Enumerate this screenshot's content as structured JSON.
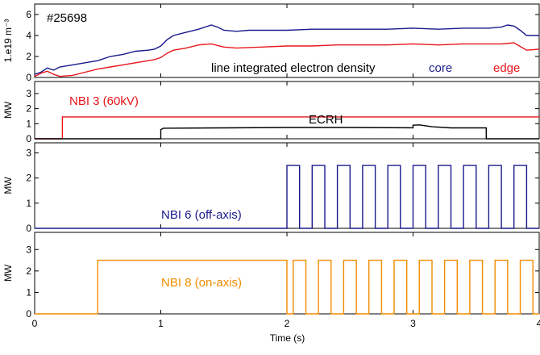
{
  "colors": {
    "core": "#1a1a8c",
    "edge": "#e8161b",
    "nbi3": "#e8161b",
    "ecrh": "#000000",
    "nbi6": "#1a1a8c",
    "nbi8": "#f08c00"
  },
  "shot_label": "#25698",
  "chart_data": [
    {
      "type": "line",
      "ylabel": "1.e19 m⁻³",
      "xlim": [
        0,
        4
      ],
      "ylim": [
        0,
        7
      ],
      "yticks": [
        "0",
        "2",
        "4",
        "6"
      ],
      "annotations": {
        "main": "line integrated electron density",
        "core": "core",
        "edge": "edge"
      },
      "series": [
        {
          "name": "core",
          "x": [
            0.0,
            0.05,
            0.1,
            0.15,
            0.2,
            0.3,
            0.4,
            0.5,
            0.6,
            0.7,
            0.8,
            0.9,
            0.95,
            1.0,
            1.05,
            1.1,
            1.2,
            1.3,
            1.4,
            1.45,
            1.5,
            1.6,
            1.7,
            1.8,
            2.0,
            2.2,
            2.4,
            2.6,
            2.8,
            3.0,
            3.2,
            3.4,
            3.6,
            3.7,
            3.75,
            3.8,
            3.85,
            3.9,
            4.0
          ],
          "y": [
            0.3,
            0.5,
            0.9,
            0.7,
            1.0,
            1.2,
            1.4,
            1.6,
            2.0,
            2.2,
            2.5,
            2.6,
            2.7,
            3.0,
            3.6,
            4.0,
            4.3,
            4.6,
            5.0,
            4.8,
            4.5,
            4.4,
            4.5,
            4.5,
            4.5,
            4.6,
            4.6,
            4.6,
            4.6,
            4.7,
            4.6,
            4.7,
            4.7,
            4.8,
            5.0,
            4.9,
            4.5,
            4.0,
            4.0
          ]
        },
        {
          "name": "edge",
          "x": [
            0.0,
            0.05,
            0.1,
            0.15,
            0.2,
            0.3,
            0.4,
            0.5,
            0.6,
            0.7,
            0.8,
            0.9,
            0.95,
            1.0,
            1.05,
            1.1,
            1.2,
            1.3,
            1.4,
            1.5,
            1.6,
            1.8,
            2.0,
            2.2,
            2.4,
            2.6,
            2.8,
            3.0,
            3.2,
            3.4,
            3.6,
            3.7,
            3.8,
            3.9,
            4.0
          ],
          "y": [
            0.1,
            0.4,
            0.6,
            0.3,
            0.1,
            0.2,
            0.5,
            0.8,
            1.0,
            1.2,
            1.4,
            1.6,
            1.7,
            1.9,
            2.3,
            2.6,
            2.8,
            3.1,
            3.2,
            2.9,
            2.8,
            2.9,
            3.0,
            3.0,
            3.1,
            3.1,
            3.1,
            3.2,
            3.1,
            3.2,
            3.2,
            3.2,
            3.3,
            2.6,
            2.7
          ]
        }
      ]
    },
    {
      "type": "line",
      "ylabel": "MW",
      "xlim": [
        0,
        4
      ],
      "ylim": [
        0,
        3.8
      ],
      "yticks": [
        "0",
        "1",
        "2",
        "3"
      ],
      "annotations": {
        "nbi3": "NBI 3 (60kV)",
        "ecrh": "ECRH"
      },
      "series": [
        {
          "name": "NBI 3 (60kV)",
          "x": [
            0.0,
            0.22,
            0.22,
            4.0
          ],
          "y": [
            0,
            0,
            1.45,
            1.45
          ]
        },
        {
          "name": "ECRH",
          "x": [
            0.0,
            1.0,
            1.0,
            1.02,
            1.5,
            2.0,
            2.5,
            3.0,
            3.0,
            3.05,
            3.15,
            3.3,
            3.58,
            3.58,
            4.0
          ],
          "y": [
            0,
            0,
            0.6,
            0.7,
            0.72,
            0.75,
            0.75,
            0.73,
            0.9,
            0.92,
            0.8,
            0.72,
            0.72,
            0,
            0
          ]
        }
      ]
    },
    {
      "type": "line",
      "ylabel": "MW",
      "xlim": [
        0,
        4
      ],
      "ylim": [
        0,
        3.4
      ],
      "yticks": [
        "0",
        "1",
        "2",
        "3"
      ],
      "annotations": {
        "label": "NBI 6 (off-axis)"
      },
      "series": [
        {
          "name": "NBI 6 (off-axis)",
          "pulse_start": 2.0,
          "pulse_period": 0.2,
          "pulse_width": 0.1,
          "pulse_level": 2.5,
          "pulse_count": 10,
          "x_end": 4.0
        }
      ]
    },
    {
      "type": "line",
      "ylabel": "MW",
      "xlim": [
        0,
        4
      ],
      "ylim": [
        0,
        3.8
      ],
      "xticks": [
        "0",
        "1",
        "2",
        "3",
        "4"
      ],
      "xlabel": "Time (s)",
      "yticks": [
        "0",
        "1",
        "2",
        "3"
      ],
      "annotations": {
        "label": "NBI 8 (on-axis)"
      },
      "series": [
        {
          "name": "NBI 8 (on-axis)",
          "flat_start": 0.5,
          "flat_end": 2.0,
          "flat_level": 2.5,
          "pulse_start": 2.05,
          "pulse_period": 0.2,
          "pulse_width": 0.1,
          "pulse_level": 2.5,
          "pulse_count": 10,
          "x_end": 4.0
        }
      ]
    }
  ]
}
